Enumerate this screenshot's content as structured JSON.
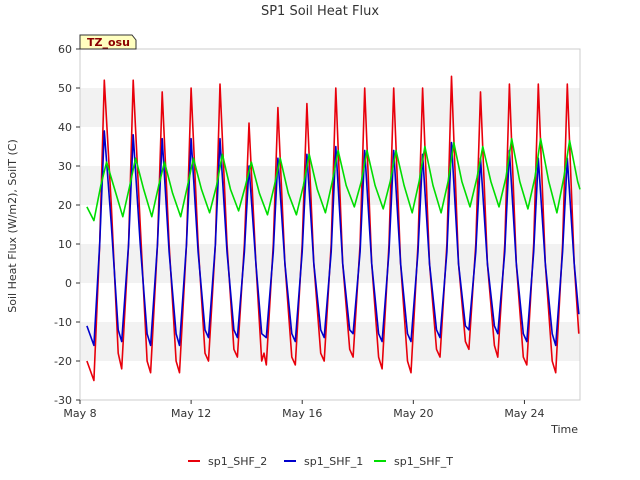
{
  "chart_data": {
    "type": "line",
    "title": "SP1 Soil Heat Flux",
    "xlabel": "Time",
    "ylabel": "Soil Heat Flux (W/m2), SoilT (C)",
    "badge": "TZ_osu",
    "x_ticks": [
      {
        "label": "May 8",
        "day": 8
      },
      {
        "label": "May 12",
        "day": 12
      },
      {
        "label": "May 16",
        "day": 16
      },
      {
        "label": "May 20",
        "day": 20
      },
      {
        "label": "May 24",
        "day": 24
      }
    ],
    "xlim": [
      "May 8",
      "May 26"
    ],
    "ylim": [
      -30,
      60
    ],
    "y_ticks": [
      -30,
      -20,
      -10,
      0,
      10,
      20,
      30,
      40,
      50,
      60
    ],
    "grid_bands": true,
    "legend_position": "bottom-center",
    "series": [
      {
        "name": "sp1_SHF_2",
        "color": "#e8000b",
        "points": [
          [
            "May 8 06:00",
            -20
          ],
          [
            "May 8 12:00",
            -25
          ],
          [
            "May 8 17:00",
            10
          ],
          [
            "May 8 21:00",
            52
          ],
          [
            "May 9 03:00",
            20
          ],
          [
            "May 9 09:00",
            -18
          ],
          [
            "May 9 12:00",
            -22
          ],
          [
            "May 9 18:00",
            10
          ],
          [
            "May 9 22:00",
            52
          ],
          [
            "May 10 04:00",
            15
          ],
          [
            "May 10 10:00",
            -20
          ],
          [
            "May 10 13:00",
            -23
          ],
          [
            "May 10 19:00",
            10
          ],
          [
            "May 10 23:00",
            49
          ],
          [
            "May 11 05:00",
            10
          ],
          [
            "May 11 11:00",
            -20
          ],
          [
            "May 11 14:00",
            -23
          ],
          [
            "May 11 20:00",
            10
          ],
          [
            "May 12 00:00",
            50
          ],
          [
            "May 12 06:00",
            10
          ],
          [
            "May 12 12:00",
            -18
          ],
          [
            "May 12 15:00",
            -20
          ],
          [
            "May 12 21:00",
            10
          ],
          [
            "May 13 01:00",
            51
          ],
          [
            "May 13 07:00",
            10
          ],
          [
            "May 13 13:00",
            -17
          ],
          [
            "May 13 16:00",
            -19
          ],
          [
            "May 13 22:00",
            10
          ],
          [
            "May 14 02:00",
            41
          ],
          [
            "May 14 08:00",
            5
          ],
          [
            "May 14 13:00",
            -20
          ],
          [
            "May 14 15:00",
            -18
          ],
          [
            "May 14 17:00",
            -21
          ],
          [
            "May 14 23:00",
            10
          ],
          [
            "May 15 03:00",
            45
          ],
          [
            "May 15 09:00",
            5
          ],
          [
            "May 15 15:00",
            -19
          ],
          [
            "May 15 18:00",
            -21
          ],
          [
            "May 16 00:00",
            10
          ],
          [
            "May 16 04:00",
            46
          ],
          [
            "May 16 10:00",
            5
          ],
          [
            "May 16 16:00",
            -18
          ],
          [
            "May 16 19:00",
            -20
          ],
          [
            "May 17 01:00",
            10
          ],
          [
            "May 17 05:00",
            50
          ],
          [
            "May 17 11:00",
            5
          ],
          [
            "May 17 17:00",
            -17
          ],
          [
            "May 17 20:00",
            -19
          ],
          [
            "May 18 02:00",
            10
          ],
          [
            "May 18 06:00",
            50
          ],
          [
            "May 18 12:00",
            5
          ],
          [
            "May 18 18:00",
            -19
          ],
          [
            "May 18 21:00",
            -22
          ],
          [
            "May 19 03:00",
            10
          ],
          [
            "May 19 07:00",
            50
          ],
          [
            "May 19 13:00",
            5
          ],
          [
            "May 19 19:00",
            -20
          ],
          [
            "May 19 22:00",
            -23
          ],
          [
            "May 20 04:00",
            10
          ],
          [
            "May 20 08:00",
            50
          ],
          [
            "May 20 14:00",
            5
          ],
          [
            "May 20 20:00",
            -17
          ],
          [
            "May 20 23:00",
            -19
          ],
          [
            "May 21 05:00",
            10
          ],
          [
            "May 21 09:00",
            53
          ],
          [
            "May 21 15:00",
            5
          ],
          [
            "May 21 21:00",
            -15
          ],
          [
            "May 22 00:00",
            -17
          ],
          [
            "May 22 06:00",
            10
          ],
          [
            "May 22 10:00",
            49
          ],
          [
            "May 22 16:00",
            5
          ],
          [
            "May 22 22:00",
            -16
          ],
          [
            "May 23 01:00",
            -19
          ],
          [
            "May 23 07:00",
            10
          ],
          [
            "May 23 11:00",
            51
          ],
          [
            "May 23 17:00",
            5
          ],
          [
            "May 23 23:00",
            -19
          ],
          [
            "May 24 02:00",
            -21
          ],
          [
            "May 24 08:00",
            10
          ],
          [
            "May 24 12:00",
            51
          ],
          [
            "May 24 18:00",
            5
          ],
          [
            "May 25 00:00",
            -20
          ],
          [
            "May 25 03:00",
            -23
          ],
          [
            "May 25 09:00",
            10
          ],
          [
            "May 25 13:00",
            51
          ],
          [
            "May 25 19:00",
            5
          ],
          [
            "May 25 23:00",
            -13
          ]
        ]
      },
      {
        "name": "sp1_SHF_1",
        "color": "#0000cc",
        "points": [
          [
            "May 8 06:00",
            -11
          ],
          [
            "May 8 12:00",
            -16
          ],
          [
            "May 8 17:00",
            10
          ],
          [
            "May 8 21:00",
            39
          ],
          [
            "May 9 03:00",
            15
          ],
          [
            "May 9 09:00",
            -12
          ],
          [
            "May 9 12:00",
            -15
          ],
          [
            "May 9 18:00",
            10
          ],
          [
            "May 9 22:00",
            38
          ],
          [
            "May 10 04:00",
            10
          ],
          [
            "May 10 10:00",
            -13
          ],
          [
            "May 10 13:00",
            -16
          ],
          [
            "May 10 19:00",
            10
          ],
          [
            "May 10 23:00",
            37
          ],
          [
            "May 11 05:00",
            8
          ],
          [
            "May 11 11:00",
            -13
          ],
          [
            "May 11 14:00",
            -16
          ],
          [
            "May 11 20:00",
            10
          ],
          [
            "May 12 00:00",
            37
          ],
          [
            "May 12 06:00",
            8
          ],
          [
            "May 12 12:00",
            -12
          ],
          [
            "May 12 15:00",
            -14
          ],
          [
            "May 12 21:00",
            10
          ],
          [
            "May 13 01:00",
            37
          ],
          [
            "May 13 07:00",
            8
          ],
          [
            "May 13 13:00",
            -12
          ],
          [
            "May 13 16:00",
            -14
          ],
          [
            "May 13 22:00",
            8
          ],
          [
            "May 14 02:00",
            30
          ],
          [
            "May 14 08:00",
            5
          ],
          [
            "May 14 13:00",
            -13
          ],
          [
            "May 14 17:00",
            -14
          ],
          [
            "May 14 23:00",
            8
          ],
          [
            "May 15 03:00",
            32
          ],
          [
            "May 15 09:00",
            5
          ],
          [
            "May 15 15:00",
            -13
          ],
          [
            "May 15 18:00",
            -15
          ],
          [
            "May 16 00:00",
            8
          ],
          [
            "May 16 04:00",
            33
          ],
          [
            "May 16 10:00",
            5
          ],
          [
            "May 16 16:00",
            -12
          ],
          [
            "May 16 19:00",
            -14
          ],
          [
            "May 17 01:00",
            8
          ],
          [
            "May 17 05:00",
            35
          ],
          [
            "May 17 11:00",
            5
          ],
          [
            "May 17 17:00",
            -12
          ],
          [
            "May 17 20:00",
            -13
          ],
          [
            "May 18 02:00",
            8
          ],
          [
            "May 18 06:00",
            34
          ],
          [
            "May 18 12:00",
            5
          ],
          [
            "May 18 18:00",
            -13
          ],
          [
            "May 18 21:00",
            -15
          ],
          [
            "May 19 03:00",
            8
          ],
          [
            "May 19 07:00",
            34
          ],
          [
            "May 19 13:00",
            5
          ],
          [
            "May 19 19:00",
            -13
          ],
          [
            "May 19 22:00",
            -15
          ],
          [
            "May 20 04:00",
            8
          ],
          [
            "May 20 08:00",
            33
          ],
          [
            "May 20 14:00",
            5
          ],
          [
            "May 20 20:00",
            -12
          ],
          [
            "May 20 23:00",
            -14
          ],
          [
            "May 21 05:00",
            8
          ],
          [
            "May 21 09:00",
            36
          ],
          [
            "May 21 15:00",
            5
          ],
          [
            "May 21 21:00",
            -11
          ],
          [
            "May 22 00:00",
            -12
          ],
          [
            "May 22 06:00",
            8
          ],
          [
            "May 22 10:00",
            32
          ],
          [
            "May 22 16:00",
            5
          ],
          [
            "May 22 22:00",
            -11
          ],
          [
            "May 23 01:00",
            -13
          ],
          [
            "May 23 07:00",
            8
          ],
          [
            "May 23 11:00",
            34
          ],
          [
            "May 23 17:00",
            5
          ],
          [
            "May 23 23:00",
            -13
          ],
          [
            "May 24 02:00",
            -15
          ],
          [
            "May 24 08:00",
            8
          ],
          [
            "May 24 12:00",
            32
          ],
          [
            "May 24 18:00",
            5
          ],
          [
            "May 25 00:00",
            -13
          ],
          [
            "May 25 03:00",
            -16
          ],
          [
            "May 25 09:00",
            8
          ],
          [
            "May 25 13:00",
            32
          ],
          [
            "May 25 19:00",
            5
          ],
          [
            "May 25 23:00",
            -8
          ]
        ]
      },
      {
        "name": "sp1_SHF_T",
        "color": "#00dd00",
        "points": [
          [
            "May 8 06:00",
            19.5
          ],
          [
            "May 8 12:00",
            16
          ],
          [
            "May 8 18:00",
            25
          ],
          [
            "May 8 23:00",
            31
          ],
          [
            "May 9 06:00",
            24
          ],
          [
            "May 9 13:00",
            17
          ],
          [
            "May 9 19:00",
            25
          ],
          [
            "May 10 00:00",
            32
          ],
          [
            "May 10 07:00",
            24
          ],
          [
            "May 10 14:00",
            17
          ],
          [
            "May 10 20:00",
            25
          ],
          [
            "May 11 01:00",
            31
          ],
          [
            "May 11 08:00",
            23
          ],
          [
            "May 11 15:00",
            17
          ],
          [
            "May 11 21:00",
            25
          ],
          [
            "May 12 02:00",
            32
          ],
          [
            "May 12 09:00",
            24
          ],
          [
            "May 12 16:00",
            18
          ],
          [
            "May 12 22:00",
            25
          ],
          [
            "May 13 03:00",
            33
          ],
          [
            "May 13 10:00",
            24
          ],
          [
            "May 13 17:00",
            18.5
          ],
          [
            "May 13 23:00",
            25
          ],
          [
            "May 14 04:00",
            31
          ],
          [
            "May 14 11:00",
            23
          ],
          [
            "May 14 18:00",
            17.5
          ],
          [
            "May 15 00:00",
            25
          ],
          [
            "May 15 05:00",
            32
          ],
          [
            "May 15 12:00",
            23
          ],
          [
            "May 15 19:00",
            17.5
          ],
          [
            "May 16 01:00",
            25
          ],
          [
            "May 16 06:00",
            33
          ],
          [
            "May 16 13:00",
            24
          ],
          [
            "May 16 20:00",
            18
          ],
          [
            "May 17 02:00",
            26
          ],
          [
            "May 17 07:00",
            34
          ],
          [
            "May 17 14:00",
            25
          ],
          [
            "May 17 21:00",
            19.5
          ],
          [
            "May 18 03:00",
            26
          ],
          [
            "May 18 08:00",
            34
          ],
          [
            "May 18 15:00",
            25
          ],
          [
            "May 18 22:00",
            19
          ],
          [
            "May 19 04:00",
            26
          ],
          [
            "May 19 09:00",
            34
          ],
          [
            "May 19 16:00",
            25
          ],
          [
            "May 19 23:00",
            18
          ],
          [
            "May 20 05:00",
            26
          ],
          [
            "May 20 10:00",
            35
          ],
          [
            "May 20 17:00",
            25
          ],
          [
            "May 21 00:00",
            18
          ],
          [
            "May 21 06:00",
            26
          ],
          [
            "May 21 11:00",
            36
          ],
          [
            "May 21 18:00",
            26
          ],
          [
            "May 22 01:00",
            19.5
          ],
          [
            "May 22 07:00",
            27
          ],
          [
            "May 22 12:00",
            35
          ],
          [
            "May 22 19:00",
            26
          ],
          [
            "May 23 02:00",
            19.5
          ],
          [
            "May 23 08:00",
            27
          ],
          [
            "May 23 13:00",
            37
          ],
          [
            "May 23 20:00",
            26
          ],
          [
            "May 24 03:00",
            19
          ],
          [
            "May 24 09:00",
            27
          ],
          [
            "May 24 14:00",
            37
          ],
          [
            "May 24 21:00",
            26
          ],
          [
            "May 25 04:00",
            18
          ],
          [
            "May 25 10:00",
            27
          ],
          [
            "May 25 15:00",
            36.5
          ],
          [
            "May 25 22:00",
            26
          ],
          [
            "May 26 00:00",
            24
          ]
        ]
      }
    ]
  }
}
